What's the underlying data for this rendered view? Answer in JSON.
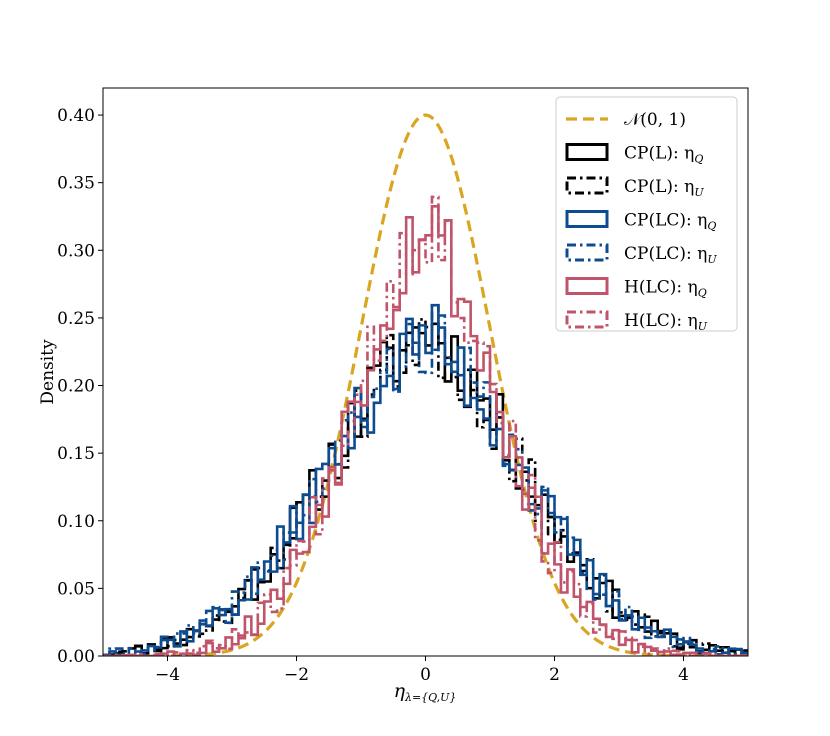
{
  "chart_data": {
    "type": "histogram",
    "xlabel": "η_{λ={Q,U}}",
    "xlabel_main": "η",
    "xlabel_sub": "λ={Q,U}",
    "ylabel": "Density",
    "xlim": [
      -5,
      5
    ],
    "ylim": [
      0,
      0.42
    ],
    "xticks": [
      -4,
      -2,
      0,
      2,
      4
    ],
    "xtick_labels": [
      "−4",
      "−2",
      "0",
      "2",
      "4"
    ],
    "yticks": [
      0.0,
      0.05,
      0.1,
      0.15,
      0.2,
      0.25,
      0.3,
      0.35,
      0.4
    ],
    "ytick_labels": [
      "0.00",
      "0.05",
      "0.10",
      "0.15",
      "0.20",
      "0.25",
      "0.30",
      "0.35",
      "0.40"
    ],
    "legend_position": "top-right",
    "colors": {
      "normal": "#DAA520",
      "cp_l": "#000000",
      "cp_lc": "#0E4C92",
      "h_lc": "#C0546A"
    },
    "series": [
      {
        "name": "𝒩(0, 1)",
        "label": "𝒩(0, 1)",
        "kind": "curve",
        "style": "dashed",
        "color": "#DAA520",
        "mu": 0,
        "sigma": 1,
        "peak": 0.4
      },
      {
        "name": "CP(L): η_Q",
        "label": "CP(L): η",
        "sub": "Q",
        "kind": "hist",
        "style": "solid",
        "color": "#000000",
        "sigma": 1.6,
        "peak": 0.246,
        "seed": 11
      },
      {
        "name": "CP(L): η_U",
        "label": "CP(L): η",
        "sub": "U",
        "kind": "hist",
        "style": "dashdot",
        "color": "#000000",
        "sigma": 1.6,
        "peak": 0.242,
        "seed": 23
      },
      {
        "name": "CP(LC): η_Q",
        "label": "CP(LC): η",
        "sub": "Q",
        "kind": "hist",
        "style": "solid",
        "color": "#0E4C92",
        "sigma": 1.62,
        "peak": 0.24,
        "seed": 37
      },
      {
        "name": "CP(LC): η_U",
        "label": "CP(LC): η",
        "sub": "U",
        "kind": "hist",
        "style": "dashdot",
        "color": "#0E4C92",
        "sigma": 1.62,
        "peak": 0.238,
        "seed": 41
      },
      {
        "name": "H(LC): η_Q",
        "label": "H(LC): η",
        "sub": "Q",
        "kind": "hist",
        "style": "solid",
        "color": "#C0546A",
        "sigma": 1.2,
        "peak": 0.328,
        "seed": 53
      },
      {
        "name": "H(LC): η_U",
        "label": "H(LC): η",
        "sub": "U",
        "kind": "hist",
        "style": "dashdot",
        "color": "#C0546A",
        "sigma": 1.2,
        "peak": 0.332,
        "seed": 67
      }
    ],
    "bin_width": 0.1
  }
}
